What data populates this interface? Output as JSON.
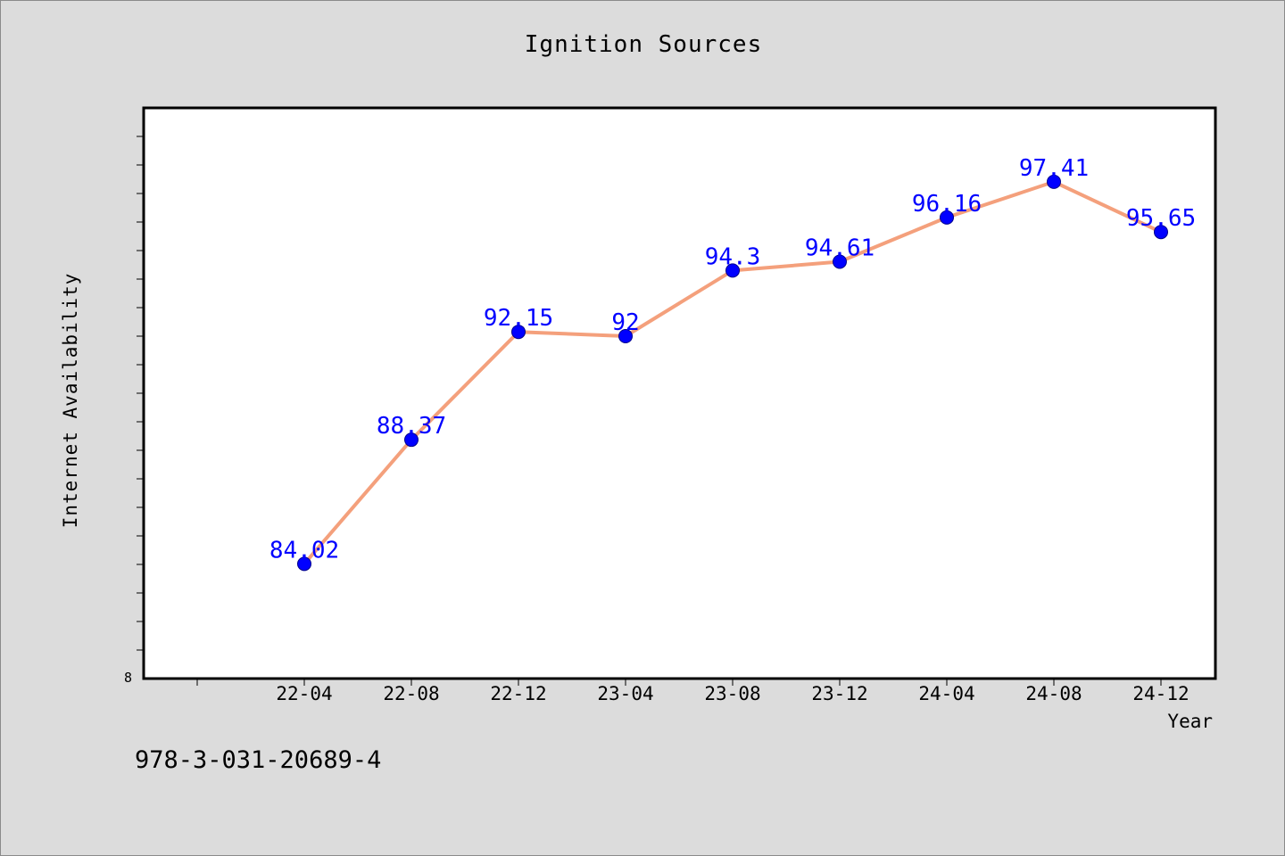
{
  "page": {
    "isbn": "978-3-031-20689-4"
  },
  "colors": {
    "line": "#f4a07c",
    "marker": "#0000ff",
    "label": "#0000ff",
    "plot_bg": "#ffffff",
    "page_bg": "#dcdcdc"
  },
  "chart_data": {
    "type": "line",
    "title": "Ignition Sources",
    "xlabel": "Year",
    "ylabel": "Internet Availability",
    "categories": [
      "22-04",
      "22-08",
      "22-12",
      "23-04",
      "23-08",
      "23-12",
      "24-04",
      "24-08",
      "24-12"
    ],
    "series": [
      {
        "values": [
          84.02,
          88.37,
          92.15,
          92,
          94.3,
          94.61,
          96.16,
          97.41,
          95.65
        ],
        "data_labels": [
          "84.02",
          "88.37",
          "92.15",
          "92",
          "94.3",
          "94.61",
          "96.16",
          "97.41",
          "95.65"
        ]
      }
    ],
    "ylim": [
      80,
      100
    ],
    "y_tick_labels": [
      "8"
    ],
    "grid": false,
    "legend": "none"
  }
}
